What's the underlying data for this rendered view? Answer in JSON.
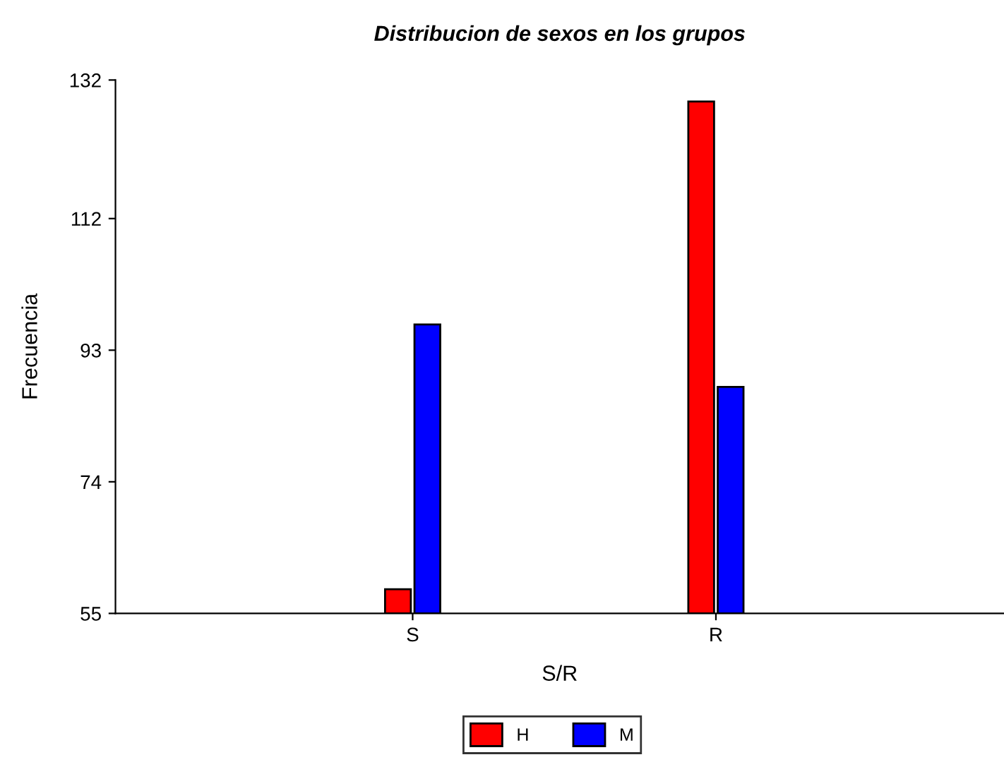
{
  "chart_data": {
    "type": "bar",
    "title": "Distribucion de sexos en los grupos",
    "xlabel": "S/R",
    "ylabel": "Frecuencia",
    "categories": [
      "S",
      "R"
    ],
    "series": [
      {
        "name": "H",
        "color": "#ff0000",
        "values": [
          58.5,
          128.9
        ]
      },
      {
        "name": "M",
        "color": "#0000ff",
        "values": [
          96.7,
          87.7
        ]
      }
    ],
    "ylim": [
      55,
      132
    ],
    "yticks": [
      55,
      74,
      93,
      112,
      132
    ],
    "grid": false,
    "legend": "bottom"
  }
}
